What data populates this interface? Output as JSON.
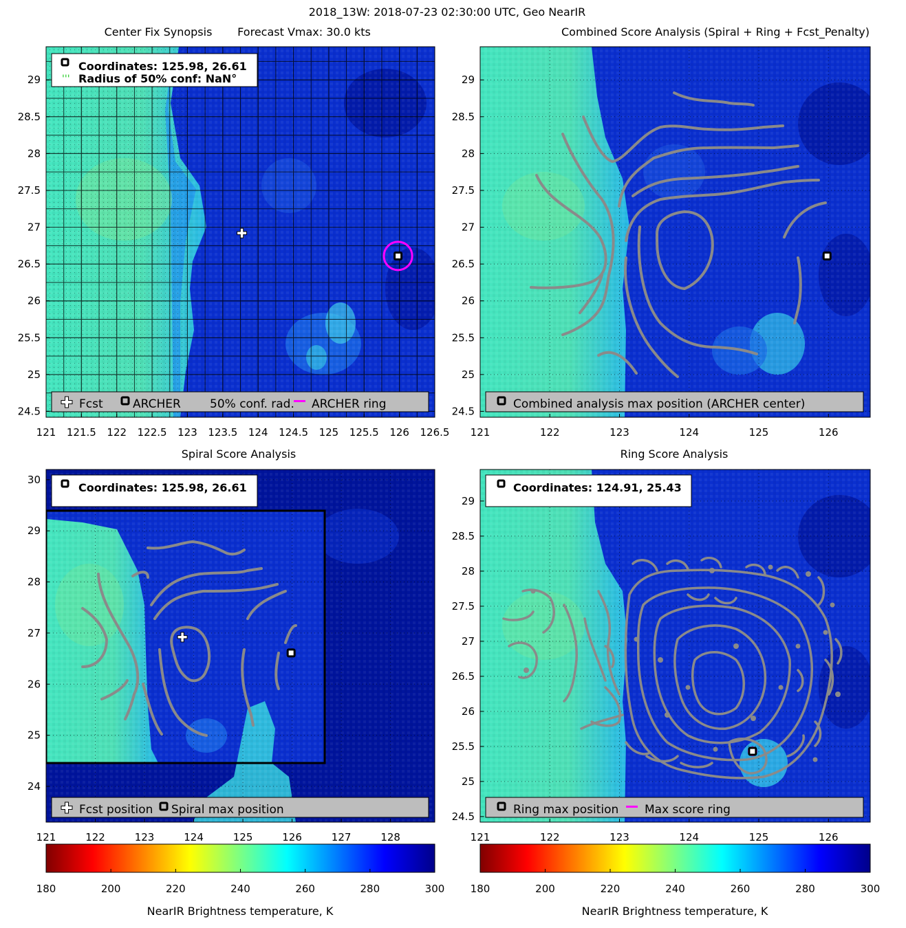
{
  "figure": {
    "suptitle": "2018_13W: 2018-07-23 02:30:00 UTC, Geo NearIR"
  },
  "colors": {
    "background_deep": "#00139a",
    "background_blue": "#0a3ad8",
    "cloud_cyan": "#36e2c8",
    "contour_gray": "#8a8a8a",
    "ring_magenta": "#ff00ff",
    "legend_gray": "#bdbdbd",
    "grid_black": "#000000"
  },
  "chart_data": [
    {
      "id": "p1",
      "type": "heatmap",
      "title_left": "Center Fix Synopsis",
      "title_right": "Forecast Vmax: 30.0 kts",
      "xlim": [
        121,
        126.5
      ],
      "ylim": [
        24.42,
        29.45
      ],
      "xticks": [
        "121",
        "121.5",
        "122",
        "122.5",
        "123",
        "123.5",
        "124",
        "124.5",
        "125",
        "125.5",
        "126",
        "126.5"
      ],
      "yticks": [
        "24.5",
        "25",
        "25.5",
        "26",
        "26.5",
        "27",
        "27.5",
        "28",
        "28.5",
        "29"
      ],
      "grid": "on",
      "info_box": {
        "line1": "Coordinates: 125.98, 26.61",
        "line2": "Radius of 50% conf: NaN°"
      },
      "markers": {
        "fcst": {
          "lon": 123.77,
          "lat": 26.92
        },
        "archer": {
          "lon": 125.98,
          "lat": 26.61
        },
        "archer_ring_radius_deg": 0.2
      },
      "legend": {
        "fcst": "Fcst",
        "archer": "ARCHER",
        "conf": "50% conf. rad.",
        "ring": "ARCHER ring"
      },
      "legend_position": "bottom"
    },
    {
      "id": "p2",
      "type": "heatmap",
      "title": "Combined Score Analysis (Spiral + Ring + Fcst_Penalty)",
      "xlim": [
        121,
        126.6
      ],
      "ylim": [
        24.42,
        29.45
      ],
      "xticks": [
        "121",
        "122",
        "123",
        "124",
        "125",
        "126"
      ],
      "yticks": [
        "24.5",
        "25",
        "25.5",
        "26",
        "26.5",
        "27",
        "27.5",
        "28",
        "28.5",
        "29"
      ],
      "grid": "dotted",
      "markers": {
        "max": {
          "lon": 125.98,
          "lat": 26.61
        }
      },
      "legend": {
        "max": "Combined analysis max position (ARCHER center)"
      },
      "legend_position": "bottom"
    },
    {
      "id": "p3",
      "type": "heatmap",
      "title": "Spiral Score Analysis",
      "xlim": [
        121,
        128.9
      ],
      "ylim": [
        23.3,
        30.2
      ],
      "xticks": [
        "121",
        "122",
        "123",
        "124",
        "125",
        "126",
        "127",
        "128"
      ],
      "yticks": [
        "24",
        "25",
        "26",
        "27",
        "28",
        "29",
        "30"
      ],
      "grid": "dotted",
      "info_box": {
        "line1": "Coordinates: 125.98, 26.61"
      },
      "markers": {
        "fcst": {
          "lon": 123.77,
          "lat": 26.92
        },
        "max": {
          "lon": 125.98,
          "lat": 26.61
        }
      },
      "legend": {
        "fcst": "Fcst position",
        "max": "Spiral max position"
      },
      "legend_position": "bottom"
    },
    {
      "id": "p4",
      "type": "heatmap",
      "title": "Ring Score Analysis",
      "xlim": [
        121,
        126.6
      ],
      "ylim": [
        24.42,
        29.45
      ],
      "xticks": [
        "121",
        "122",
        "123",
        "124",
        "125",
        "126"
      ],
      "yticks": [
        "24.5",
        "25",
        "25.5",
        "26",
        "26.5",
        "27",
        "27.5",
        "28",
        "28.5",
        "29"
      ],
      "grid": "dotted",
      "info_box": {
        "line1": "Coordinates: 124.91, 25.43"
      },
      "markers": {
        "max": {
          "lon": 124.91,
          "lat": 25.43
        }
      },
      "legend": {
        "max": "Ring max position",
        "ring": "Max score ring"
      },
      "legend_position": "bottom"
    }
  ],
  "colorbar": {
    "label": "NearIR Brightness temperature, K",
    "range": [
      180,
      300
    ],
    "ticks": [
      "180",
      "200",
      "220",
      "240",
      "260",
      "280",
      "300"
    ]
  }
}
